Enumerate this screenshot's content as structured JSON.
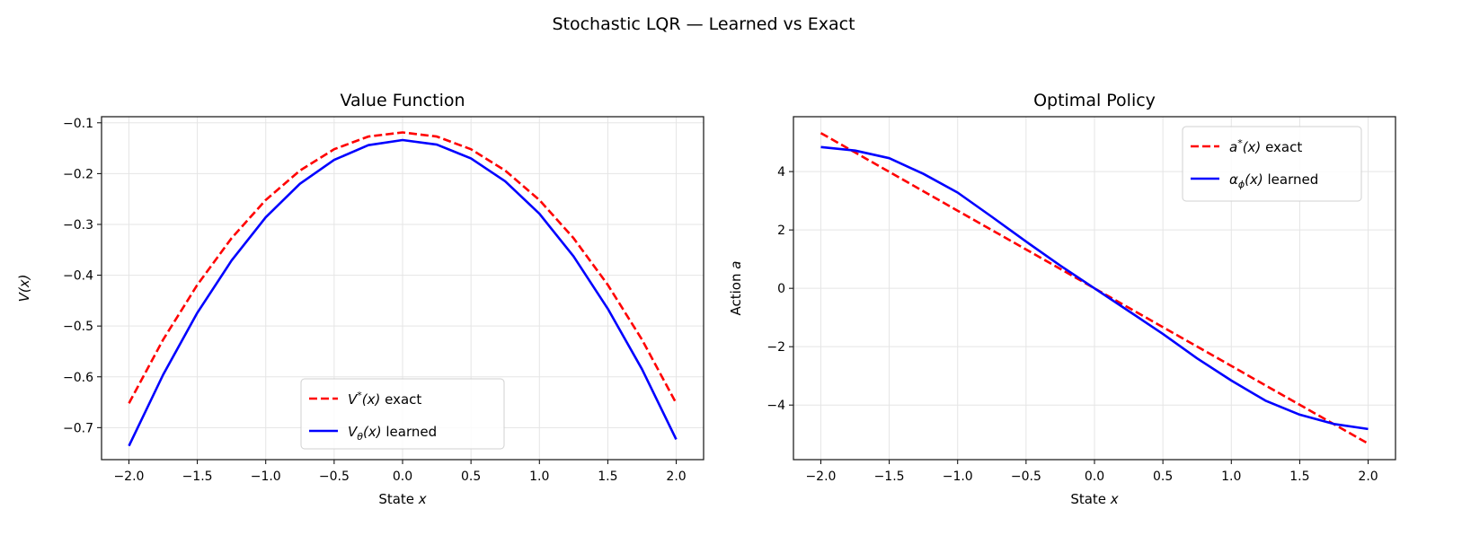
{
  "title": "Stochastic LQR — Learned vs Exact",
  "chart_data": [
    {
      "type": "line",
      "title": "Value Function",
      "xlabel": {
        "text": "State ",
        "var": "x"
      },
      "ylabel": {
        "text": "V(x)"
      },
      "xlim": [
        -2.2,
        2.2
      ],
      "ylim": [
        -0.763,
        -0.088
      ],
      "xticks": [
        -2.0,
        -1.5,
        -1.0,
        -0.5,
        0.0,
        0.5,
        1.0,
        1.5,
        2.0
      ],
      "xtick_labels": [
        "−2.0",
        "−1.5",
        "−1.0",
        "−0.5",
        "0.0",
        "0.5",
        "1.0",
        "1.5",
        "2.0"
      ],
      "yticks": [
        -0.7,
        -0.6,
        -0.5,
        -0.4,
        -0.3,
        -0.2,
        -0.1
      ],
      "ytick_labels": [
        "−0.7",
        "−0.6",
        "−0.5",
        "−0.4",
        "−0.3",
        "−0.2",
        "−0.1"
      ],
      "grid": true,
      "legend_position": "lower-center",
      "x": [
        -2,
        -1.75,
        -1.5,
        -1.25,
        -1,
        -0.75,
        -0.5,
        -0.25,
        0,
        0.25,
        0.5,
        0.75,
        1,
        1.25,
        1.5,
        1.75,
        2
      ],
      "series": [
        {
          "name": {
            "sym": "V",
            "sup": "*",
            "sub": "",
            "arg": "(x)",
            "rest": " exact"
          },
          "color": "#ff0000",
          "style": "dashed",
          "values": [
            -0.652,
            -0.527,
            -0.419,
            -0.327,
            -0.252,
            -0.194,
            -0.152,
            -0.127,
            -0.119,
            -0.127,
            -0.152,
            -0.194,
            -0.252,
            -0.327,
            -0.419,
            -0.527,
            -0.652
          ]
        },
        {
          "name": {
            "sym": "V",
            "sup": "",
            "sub": "θ",
            "arg": "(x)",
            "rest": " learned"
          },
          "color": "#0000ff",
          "style": "solid",
          "values": [
            -0.736,
            -0.596,
            -0.474,
            -0.371,
            -0.286,
            -0.22,
            -0.173,
            -0.144,
            -0.134,
            -0.143,
            -0.17,
            -0.215,
            -0.279,
            -0.363,
            -0.466,
            -0.585,
            -0.723
          ]
        }
      ]
    },
    {
      "type": "line",
      "title": "Optimal Policy",
      "xlabel": {
        "text": "State ",
        "var": "x"
      },
      "ylabel": {
        "text": "Action ",
        "var": "a"
      },
      "xlim": [
        -2.2,
        2.2
      ],
      "ylim": [
        -5.87,
        5.88
      ],
      "xticks": [
        -2.0,
        -1.5,
        -1.0,
        -0.5,
        0.0,
        0.5,
        1.0,
        1.5,
        2.0
      ],
      "xtick_labels": [
        "−2.0",
        "−1.5",
        "−1.0",
        "−0.5",
        "0.0",
        "0.5",
        "1.0",
        "1.5",
        "2.0"
      ],
      "yticks": [
        -4,
        -2,
        0,
        2,
        4
      ],
      "ytick_labels": [
        "−4",
        "−2",
        "0",
        "2",
        "4"
      ],
      "grid": true,
      "legend_position": "upper-right",
      "x": [
        -2,
        -1.75,
        -1.5,
        -1.25,
        -1,
        -0.75,
        -0.5,
        -0.25,
        0,
        0.25,
        0.5,
        0.75,
        1,
        1.25,
        1.5,
        1.75,
        2
      ],
      "series": [
        {
          "name": {
            "sym": "a",
            "sup": "*",
            "sub": "",
            "arg": "(x)",
            "rest": " exact"
          },
          "color": "#ff0000",
          "style": "dashed",
          "values": [
            5.32,
            4.655,
            3.99,
            3.325,
            2.66,
            1.995,
            1.33,
            0.665,
            0,
            -0.665,
            -1.33,
            -1.995,
            -2.66,
            -3.325,
            -3.99,
            -4.655,
            -5.32
          ]
        },
        {
          "name": {
            "sym": "α",
            "sup": "",
            "sub": "ϕ",
            "arg": "(x)",
            "rest": " learned"
          },
          "color": "#0000ff",
          "style": "solid",
          "values": [
            4.84,
            4.72,
            4.46,
            3.92,
            3.28,
            2.45,
            1.6,
            0.78,
            0,
            -0.78,
            -1.56,
            -2.4,
            -3.16,
            -3.85,
            -4.33,
            -4.65,
            -4.82
          ]
        }
      ]
    }
  ]
}
